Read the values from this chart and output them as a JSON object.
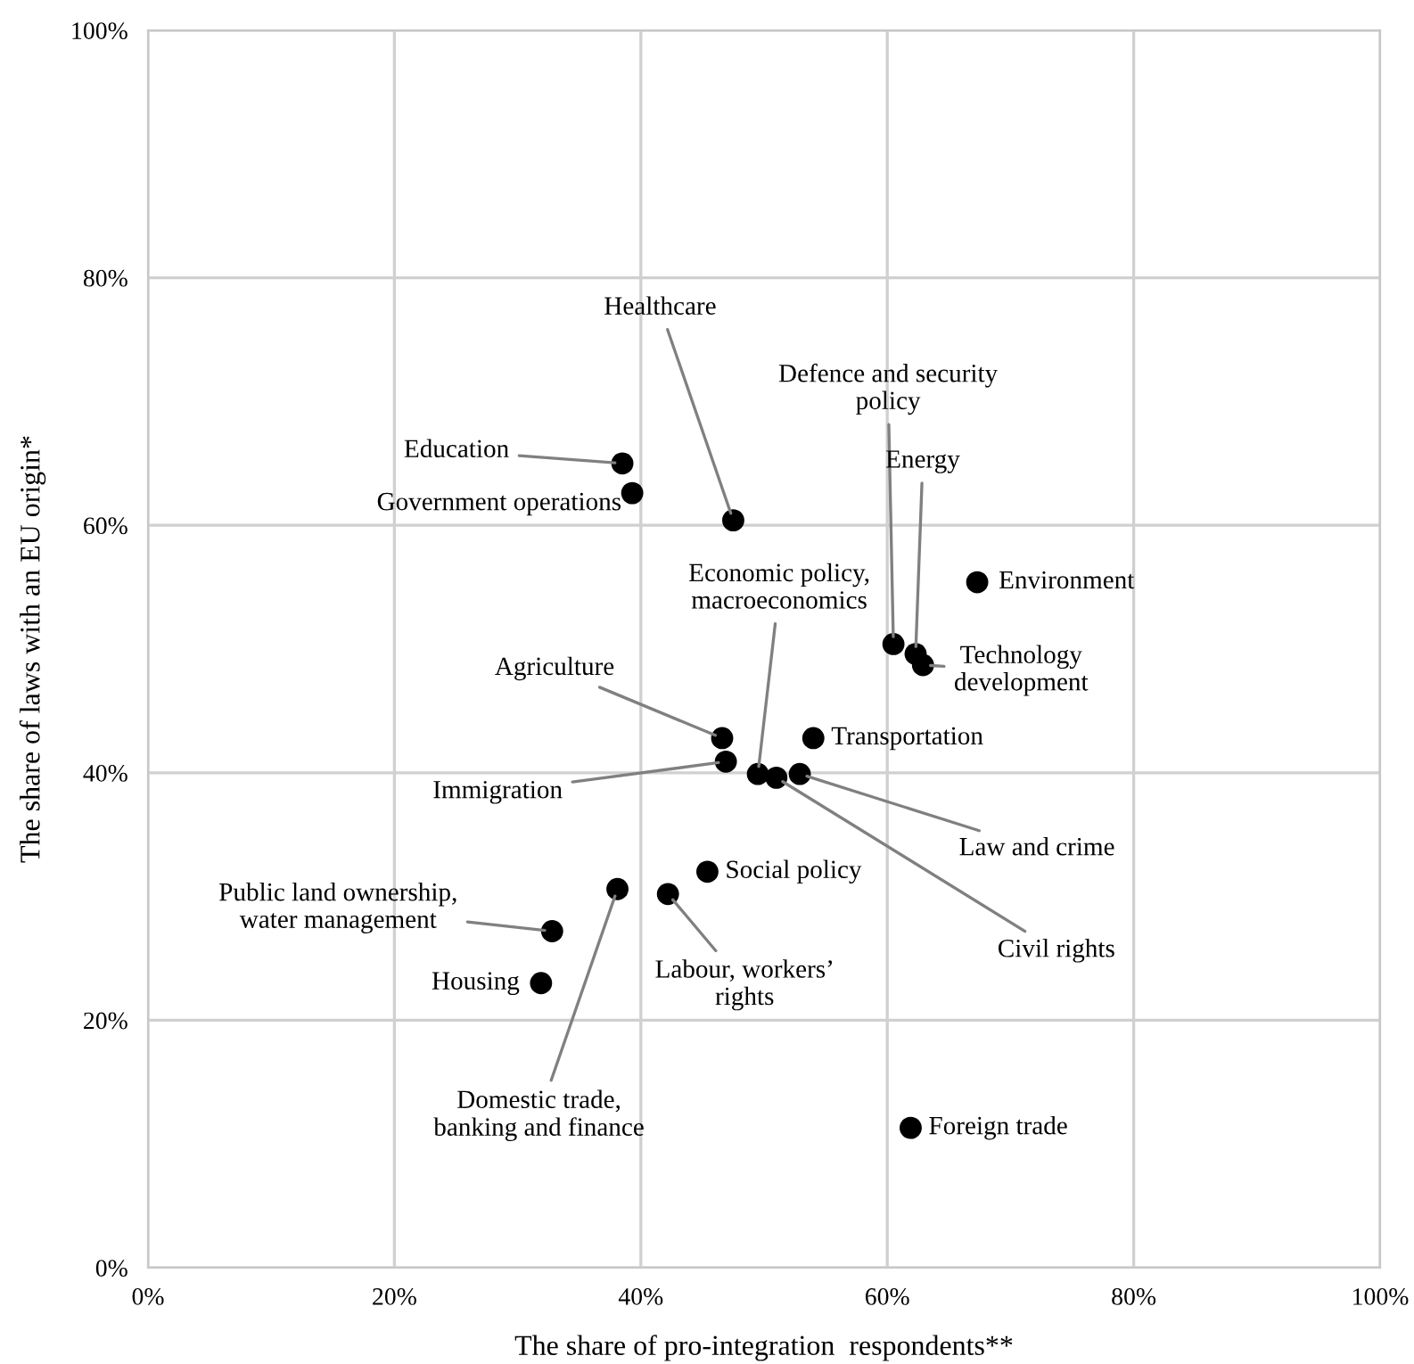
{
  "chart_data": {
    "type": "scatter",
    "xlabel": "The share of pro-integration  respondents**",
    "ylabel": "The share of laws with an EU origin*",
    "x": [
      38.5,
      39.3,
      47.5,
      60.5,
      62.3,
      67.3,
      62.9,
      49.5,
      46.6,
      54.0,
      46.9,
      52.9,
      45.4,
      51.0,
      42.2,
      32.8,
      31.9,
      38.1,
      61.9
    ],
    "values": [
      65.0,
      62.6,
      60.4,
      50.4,
      49.6,
      55.4,
      48.7,
      39.9,
      42.8,
      42.8,
      40.9,
      39.9,
      32.0,
      39.6,
      30.2,
      27.2,
      23.0,
      30.6,
      11.3
    ],
    "color": "#000000",
    "marker": "circle",
    "grid": true,
    "xlim": [
      0,
      100
    ],
    "ylim": [
      0,
      100
    ],
    "xticks": [
      {
        "value": 0,
        "label": "0%"
      },
      {
        "value": 20,
        "label": "20%"
      },
      {
        "value": 40,
        "label": "40%"
      },
      {
        "value": 60,
        "label": "60%"
      },
      {
        "value": 80,
        "label": "80%"
      },
      {
        "value": 100,
        "label": "100%"
      }
    ],
    "yticks": [
      {
        "value": 0,
        "label": "0%"
      },
      {
        "value": 20,
        "label": "20%"
      },
      {
        "value": 40,
        "label": "40%"
      },
      {
        "value": 60,
        "label": "60%"
      },
      {
        "value": 80,
        "label": "80%"
      },
      {
        "value": 100,
        "label": "100%"
      }
    ],
    "annotations": [
      {
        "text": "Education",
        "x": 38.5,
        "y": 65.0
      },
      {
        "text": "Government operations",
        "x": 39.3,
        "y": 62.6
      },
      {
        "text": "Healthcare",
        "x": 47.5,
        "y": 60.4
      },
      {
        "text": "Defence and security\npolicy",
        "x": 60.5,
        "y": 50.4
      },
      {
        "text": "Energy",
        "x": 62.3,
        "y": 49.6
      },
      {
        "text": "Environment",
        "x": 67.3,
        "y": 55.4
      },
      {
        "text": "Technology\ndevelopment",
        "x": 62.9,
        "y": 48.7
      },
      {
        "text": "Economic policy,\nmacroeconomics",
        "x": 49.5,
        "y": 39.9
      },
      {
        "text": "Agriculture",
        "x": 46.6,
        "y": 42.8
      },
      {
        "text": "Transportation",
        "x": 54.0,
        "y": 42.8
      },
      {
        "text": "Immigration",
        "x": 46.9,
        "y": 40.9
      },
      {
        "text": "Law and crime",
        "x": 52.9,
        "y": 39.9
      },
      {
        "text": "Social policy",
        "x": 45.4,
        "y": 32.0
      },
      {
        "text": "Civil rights",
        "x": 51.0,
        "y": 39.6
      },
      {
        "text": "Labour, workers’\nrights",
        "x": 42.2,
        "y": 30.2
      },
      {
        "text": "Public land ownership,\nwater management",
        "x": 32.8,
        "y": 27.2
      },
      {
        "text": "Housing",
        "x": 31.9,
        "y": 23.0
      },
      {
        "text": "Domestic trade,\nbanking and finance",
        "x": 38.1,
        "y": 30.6
      },
      {
        "text": "Foreign trade",
        "x": 61.9,
        "y": 11.3
      }
    ]
  }
}
